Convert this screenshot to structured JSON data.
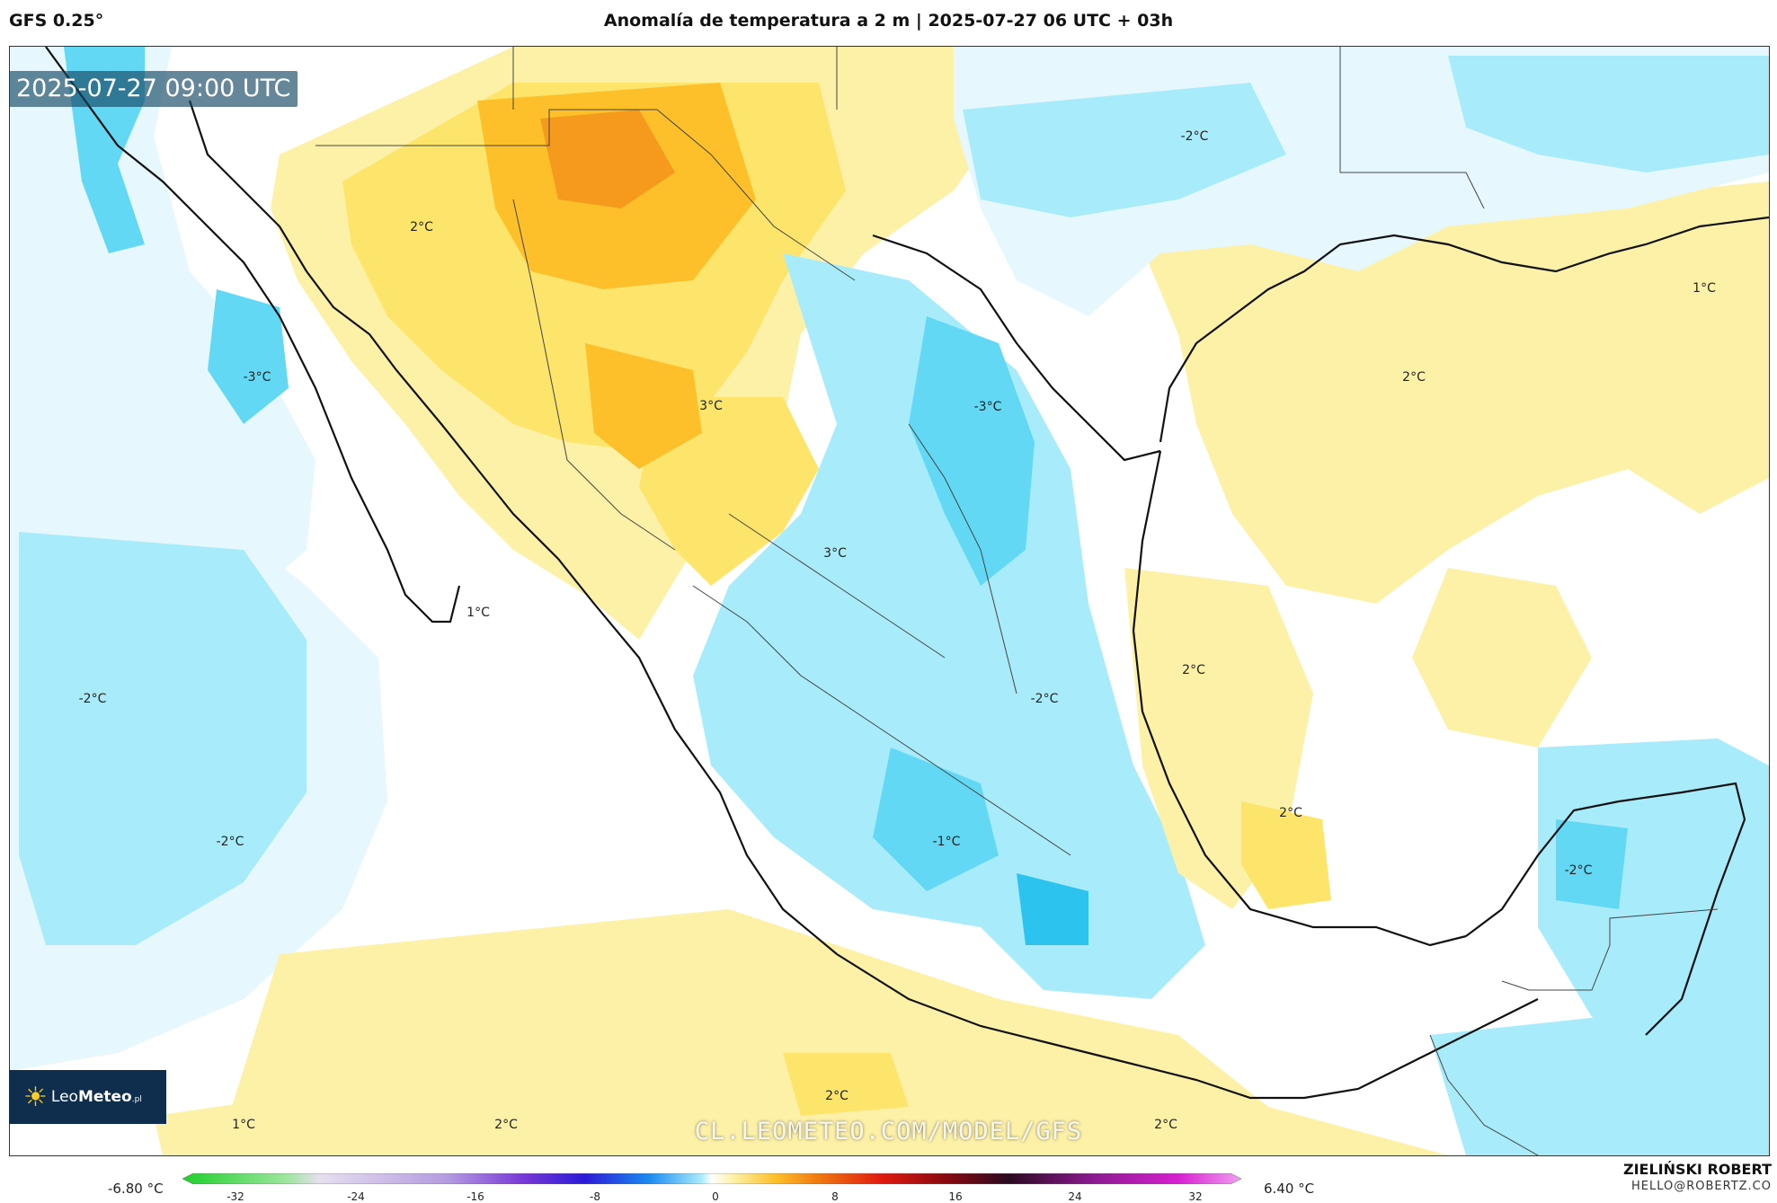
{
  "header": {
    "model": "GFS 0.25°",
    "title": "Anomalía de temperatura a 2 m | 2025-07-27 06 UTC + 03h"
  },
  "map": {
    "valid_time": "2025-07-27 09:00 UTC",
    "anomaly_labels": [
      {
        "text": "2°C"
      },
      {
        "text": "-2°C"
      },
      {
        "text": "1°C"
      },
      {
        "text": "-3°C"
      },
      {
        "text": "3°C"
      },
      {
        "text": "-3°C"
      },
      {
        "text": "2°C"
      },
      {
        "text": "3°C"
      },
      {
        "text": "1°C"
      },
      {
        "text": "-2°C"
      },
      {
        "text": "2°C"
      },
      {
        "text": "-2°C"
      },
      {
        "text": "2°C"
      },
      {
        "text": "-1°C"
      },
      {
        "text": "-2°C"
      },
      {
        "text": "-2°C"
      },
      {
        "text": "2°C"
      },
      {
        "text": "1°C"
      },
      {
        "text": "2°C"
      },
      {
        "text": "2°C"
      }
    ],
    "watermark": "CL.LEOMETEO.COM/MODEL/GFS",
    "logo": {
      "brand_light": "Leo",
      "brand_bold": "Meteo",
      "suffix": ".pl"
    }
  },
  "colorbar": {
    "min_label": "-6.80 °C",
    "max_label": "6.40 °C",
    "ticks": [
      "-32",
      "-24",
      "-16",
      "-8",
      "0",
      "8",
      "16",
      "24",
      "32"
    ]
  },
  "author": {
    "name": "ZIELIŃSKI ROBERT",
    "email": "HELLO@ROBERTZ.CO"
  },
  "colors": {
    "warm_light": "#fdf1a8",
    "warm_mid": "#fde46a",
    "warm_strong": "#fdc02a",
    "warm_hot": "#f59a1c",
    "cool_light": "#a8ecfb",
    "cool_mid": "#62d8f5",
    "cool_strong": "#2cc3ee",
    "land_neutral": "#ffffff",
    "border": "#111111"
  }
}
